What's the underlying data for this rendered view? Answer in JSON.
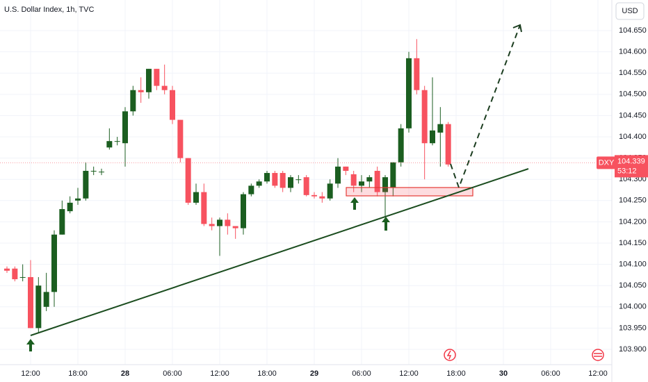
{
  "chart_data": {
    "type": "candlestick",
    "title": "U.S. Dollar Index, 1h, TVC",
    "currency": "USD",
    "symbol": "DXY",
    "last_price": 104.339,
    "countdown": "53:12",
    "up_color": "#1b5e20",
    "down_color": "#f7525f",
    "grid": true,
    "categories": [
      null,
      null,
      null,
      "12:00",
      null,
      null,
      null,
      null,
      null,
      "18:00",
      null,
      null,
      null,
      null,
      null,
      "28",
      null,
      null,
      null,
      null,
      null,
      "06:00",
      null,
      null,
      null,
      null,
      null,
      "12:00",
      null,
      null,
      null,
      null,
      null,
      "18:00",
      null,
      null,
      null,
      null,
      null,
      "29",
      null,
      null,
      null,
      null,
      null,
      "06:00",
      null,
      null,
      null,
      null,
      null,
      "12:00",
      null,
      null,
      null,
      null,
      null,
      "18:00",
      null,
      null,
      null,
      null,
      null,
      "30",
      null,
      null,
      null,
      null,
      null,
      "06:00",
      null,
      null,
      null,
      null,
      null,
      "12:00",
      null,
      null
    ],
    "open": [
      104.09,
      104.09,
      104.07,
      104.07,
      103.95,
      104.0,
      104.035,
      104.17,
      104.225,
      104.25,
      104.255,
      104.32,
      104.318,
      104.375,
      104.39,
      104.385,
      104.46,
      104.51,
      104.505,
      104.56,
      104.52,
      104.51,
      104.44,
      104.35,
      104.245,
      104.27,
      104.195,
      104.19,
      104.205,
      104.19,
      104.185,
      104.265,
      104.285,
      104.295,
      104.315,
      104.315,
      104.28,
      104.3,
      104.305,
      104.263,
      104.26,
      104.255,
      104.29,
      104.33,
      104.312,
      104.285,
      104.295,
      104.32,
      104.27,
      104.28,
      104.34,
      104.42,
      104.585,
      104.51,
      104.385,
      104.41,
      104.43,
      null,
      null,
      null,
      null,
      null,
      null,
      null,
      null,
      null,
      null,
      null,
      null,
      null,
      null,
      null,
      null,
      null,
      null,
      null,
      null,
      null
    ],
    "high": [
      104.095,
      104.095,
      104.1,
      104.11,
      104.07,
      104.08,
      104.18,
      104.25,
      104.26,
      104.28,
      104.34,
      104.33,
      104.325,
      104.42,
      104.4,
      104.47,
      104.52,
      104.54,
      104.56,
      104.56,
      104.57,
      104.52,
      104.44,
      104.35,
      104.29,
      104.29,
      104.21,
      104.21,
      104.22,
      104.19,
      104.27,
      104.29,
      104.3,
      104.32,
      104.32,
      104.32,
      104.31,
      104.31,
      104.31,
      104.27,
      104.27,
      104.3,
      104.35,
      104.33,
      104.32,
      104.31,
      104.31,
      104.33,
      104.31,
      104.34,
      104.43,
      104.6,
      104.63,
      104.52,
      104.54,
      104.47,
      104.435,
      null,
      null,
      null,
      null,
      null,
      null,
      null,
      null,
      null,
      null,
      null,
      null,
      null,
      null,
      null,
      null,
      null,
      null,
      null,
      null,
      null
    ],
    "low": [
      104.08,
      104.06,
      104.06,
      103.95,
      103.94,
      103.99,
      104.0,
      104.17,
      104.22,
      104.24,
      104.25,
      104.31,
      104.31,
      104.37,
      104.38,
      104.33,
      104.45,
      104.48,
      104.49,
      104.51,
      104.5,
      104.43,
      104.34,
      104.24,
      104.24,
      104.19,
      104.18,
      104.12,
      104.17,
      104.16,
      104.17,
      104.26,
      104.28,
      104.29,
      104.28,
      104.27,
      104.27,
      104.29,
      104.26,
      104.255,
      104.245,
      104.25,
      104.28,
      104.31,
      104.27,
      104.27,
      104.28,
      104.26,
      104.21,
      104.26,
      104.33,
      104.41,
      104.5,
      104.3,
      104.38,
      104.33,
      104.33,
      null,
      null,
      null,
      null,
      null,
      null,
      null,
      null,
      null,
      null,
      null,
      null,
      null,
      null,
      null,
      null,
      null,
      null,
      null,
      null,
      null
    ],
    "close": [
      104.085,
      104.065,
      104.07,
      103.95,
      104.05,
      104.035,
      104.17,
      104.23,
      104.245,
      104.255,
      104.32,
      104.32,
      104.318,
      104.39,
      104.39,
      104.46,
      104.51,
      104.505,
      104.56,
      104.52,
      104.51,
      104.44,
      104.35,
      104.245,
      104.27,
      104.195,
      104.19,
      104.205,
      104.19,
      104.185,
      104.265,
      104.285,
      104.295,
      104.315,
      104.285,
      104.28,
      104.305,
      104.3,
      104.263,
      104.26,
      104.255,
      104.29,
      104.33,
      104.32,
      104.285,
      104.295,
      104.305,
      104.27,
      104.305,
      104.34,
      104.42,
      104.585,
      104.51,
      104.385,
      104.415,
      104.43,
      104.335,
      null,
      null,
      null,
      null,
      null,
      null,
      null,
      null,
      null,
      null,
      null,
      null,
      null,
      null,
      null,
      null,
      null,
      null,
      null,
      null,
      null
    ],
    "ylim": [
      103.864,
      104.722
    ],
    "yticks": [
      {
        "value": 103.9,
        "label": "103.900"
      },
      {
        "value": 103.95,
        "label": "103.950"
      },
      {
        "value": 104.0,
        "label": "104.000"
      },
      {
        "value": 104.05,
        "label": "104.050"
      },
      {
        "value": 104.1,
        "label": "104.100"
      },
      {
        "value": 104.15,
        "label": "104.150"
      },
      {
        "value": 104.2,
        "label": "104.200"
      },
      {
        "value": 104.25,
        "label": "104.250"
      },
      {
        "value": 104.3,
        "label": "104.300"
      },
      {
        "value": 104.35,
        "label": "104.350"
      },
      {
        "value": 104.4,
        "label": "104.400"
      },
      {
        "value": 104.45,
        "label": "104.450"
      },
      {
        "value": 104.5,
        "label": "104.500"
      },
      {
        "value": 104.55,
        "label": "104.550"
      },
      {
        "value": 104.6,
        "label": "104.600"
      },
      {
        "value": 104.65,
        "label": "104.650"
      }
    ]
  }
}
